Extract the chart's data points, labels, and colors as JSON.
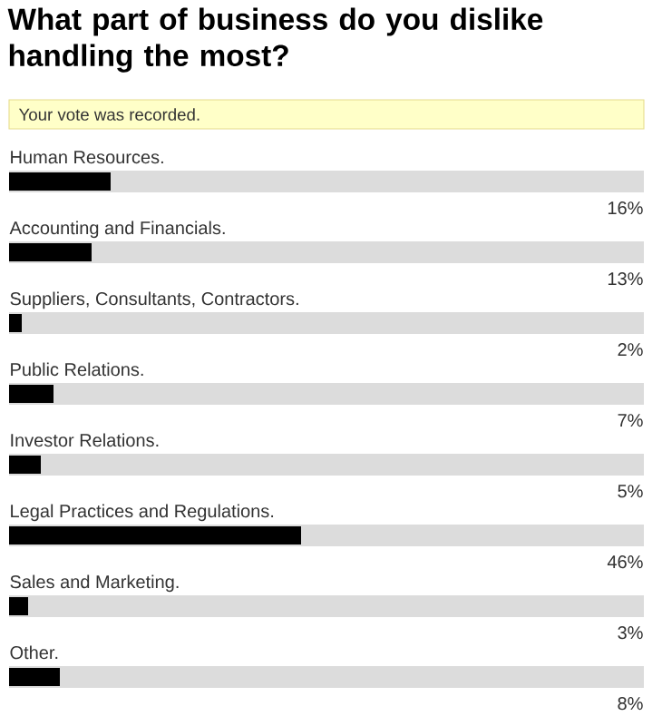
{
  "chart_data": {
    "type": "bar",
    "orientation": "horizontal",
    "title": "What part of business do you dislike handling the most?",
    "annotations": [
      "Your vote was recorded."
    ],
    "categories": [
      "Human Resources.",
      "Accounting and Financials.",
      "Suppliers, Consultants, Contractors.",
      "Public Relations.",
      "Investor Relations.",
      "Legal Practices and Regulations.",
      "Sales and Marketing.",
      "Other."
    ],
    "values": [
      16,
      13,
      2,
      7,
      5,
      46,
      3,
      8
    ],
    "value_labels": [
      "16%",
      "13%",
      "2%",
      "7%",
      "5%",
      "46%",
      "3%",
      "8%"
    ],
    "color": "#000000",
    "xlim": [
      0,
      100
    ]
  }
}
